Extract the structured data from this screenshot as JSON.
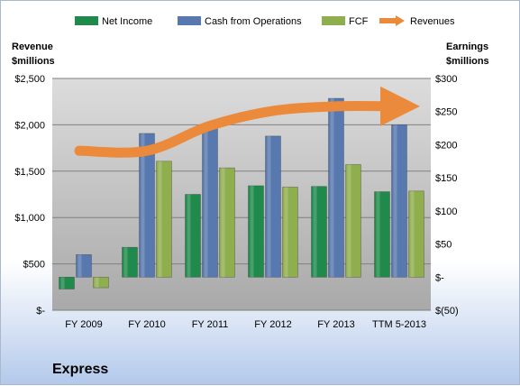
{
  "chart_data": {
    "type": "bar",
    "title": "Express",
    "categories": [
      "FY 2009",
      "FY 2010",
      "FY 2011",
      "FY 2012",
      "FY 2013",
      "TTM 5-2013"
    ],
    "series": [
      {
        "name": "Net Income",
        "axis": "right",
        "color": "#1f8a4c",
        "values": [
          -18,
          45,
          125,
          138,
          137,
          129
        ]
      },
      {
        "name": "Cash from Operations",
        "axis": "right",
        "color": "#5878b0",
        "values": [
          34,
          217,
          227,
          213,
          270,
          230
        ]
      },
      {
        "name": "FCF",
        "axis": "right",
        "color": "#8fae4e",
        "values": [
          -16,
          175,
          165,
          136,
          170,
          130
        ]
      },
      {
        "name": "Revenues",
        "axis": "left",
        "type": "line",
        "color": "#ec8a3c",
        "values": [
          1720,
          1720,
          1990,
          2150,
          2200,
          2200
        ]
      }
    ],
    "y_left": {
      "label_line1": "Revenue",
      "label_line2": "$millions",
      "ylim": [
        0,
        2500
      ],
      "ticks": [
        0,
        500,
        1000,
        1500,
        2000,
        2500
      ],
      "tick_labels": [
        "$-",
        "$500",
        "$1,000",
        "$1,500",
        "$2,000",
        "$2,500"
      ]
    },
    "y_right": {
      "label_line1": "Earnings",
      "label_line2": "$millions",
      "ylim": [
        -50,
        300
      ],
      "ticks": [
        -50,
        0,
        50,
        100,
        150,
        200,
        250,
        300
      ],
      "tick_labels": [
        "$(50)",
        "$-",
        "$50",
        "$100",
        "$150",
        "$200",
        "$250",
        "$300"
      ]
    },
    "grid": true,
    "legend": "top"
  }
}
